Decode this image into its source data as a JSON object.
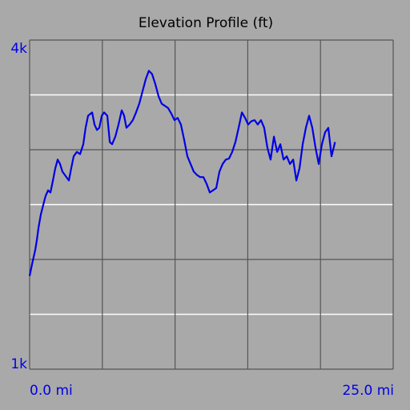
{
  "chart_data": {
    "type": "line",
    "title": "Elevation Profile (ft)",
    "x": [
      0,
      0.17,
      0.39,
      0.5,
      0.61,
      0.77,
      0.94,
      1.1,
      1.27,
      1.43,
      1.6,
      1.76,
      1.93,
      2.09,
      2.26,
      2.48,
      2.7,
      2.86,
      3.03,
      3.25,
      3.47,
      3.69,
      3.85,
      4.02,
      4.3,
      4.46,
      4.63,
      4.79,
      4.96,
      5.12,
      5.34,
      5.51,
      5.67,
      5.89,
      6.11,
      6.33,
      6.5,
      6.66,
      6.88,
      7.1,
      7.32,
      7.54,
      7.76,
      7.98,
      8.2,
      8.42,
      8.64,
      8.86,
      9.08,
      9.3,
      9.52,
      9.74,
      9.96,
      10.18,
      10.4,
      10.63,
      10.85,
      11.07,
      11.29,
      11.51,
      11.73,
      11.95,
      12.17,
      12.39,
      12.61,
      12.83,
      13.05,
      13.27,
      13.49,
      13.71,
      13.93,
      14.15,
      14.37,
      14.6,
      14.82,
      15.03,
      15.25,
      15.47,
      15.69,
      15.91,
      16.13,
      16.35,
      16.57,
      16.8,
      17.02,
      17.24,
      17.46,
      17.68,
      17.9,
      18.12,
      18.34,
      18.56,
      18.78,
      19.0,
      19.22,
      19.44,
      19.66,
      19.88,
      20.1,
      20.32,
      20.54,
      20.76,
      21.0
    ],
    "series": [
      {
        "color": "#0000e6",
        "values": [
          1850,
          1960,
          2090,
          2180,
          2290,
          2410,
          2500,
          2580,
          2630,
          2610,
          2720,
          2830,
          2910,
          2870,
          2800,
          2760,
          2720,
          2830,
          2940,
          2980,
          2960,
          3050,
          3200,
          3310,
          3340,
          3230,
          3180,
          3200,
          3310,
          3340,
          3310,
          3070,
          3050,
          3120,
          3230,
          3360,
          3310,
          3200,
          3230,
          3270,
          3340,
          3420,
          3530,
          3640,
          3720,
          3690,
          3600,
          3490,
          3420,
          3400,
          3380,
          3330,
          3270,
          3290,
          3230,
          3090,
          2940,
          2870,
          2800,
          2770,
          2750,
          2750,
          2690,
          2610,
          2630,
          2650,
          2800,
          2870,
          2910,
          2920,
          2980,
          3070,
          3200,
          3340,
          3290,
          3230,
          3260,
          3270,
          3230,
          3270,
          3200,
          3020,
          2910,
          3120,
          2980,
          3050,
          2910,
          2940,
          2870,
          2910,
          2720,
          2830,
          3050,
          3200,
          3310,
          3200,
          3020,
          2870,
          3050,
          3160,
          3200,
          2940,
          3070
        ]
      }
    ],
    "xlim": [
      0,
      25
    ],
    "ylim": [
      1000,
      4000
    ],
    "xticks": [
      {
        "value": 0,
        "label": "0.0 mi"
      },
      {
        "value": 25,
        "label": "25.0 mi"
      }
    ],
    "yticks": [
      {
        "value": 1000,
        "label": "1k"
      },
      {
        "value": 4000,
        "label": "4k"
      }
    ],
    "xgrid": [
      0,
      5,
      10,
      15,
      20,
      25
    ],
    "ygrid_major": [
      1000,
      2000,
      3000,
      4000
    ],
    "ygrid_minor": [
      1500,
      2500,
      3500
    ]
  }
}
